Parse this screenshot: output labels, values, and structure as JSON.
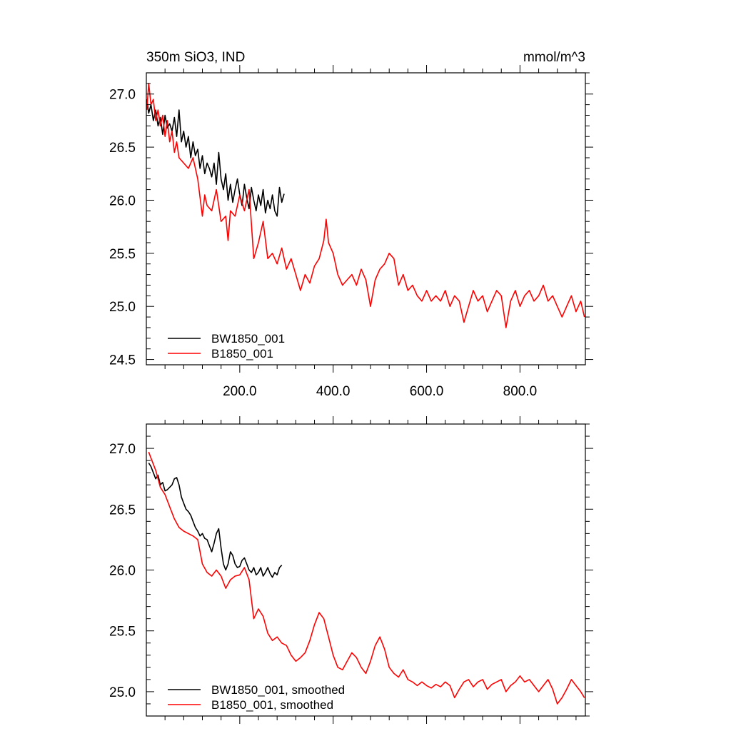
{
  "title_left": "350m SiO3, IND",
  "title_right": "mmol/m^3",
  "chart_data": [
    {
      "type": "line",
      "panel": "raw",
      "xlim": [
        0,
        940
      ],
      "ylim": [
        24.45,
        27.2
      ],
      "x_ticks": [
        200,
        400,
        600,
        800
      ],
      "x_tick_labels": [
        "200.0",
        "400.0",
        "600.0",
        "800.0"
      ],
      "y_ticks": [
        24.5,
        25.0,
        25.5,
        26.0,
        26.5,
        27.0
      ],
      "y_tick_labels": [
        "24.5",
        "25.0",
        "25.5",
        "26.0",
        "26.5",
        "27.0"
      ],
      "legend_position": "bottom-left",
      "series": [
        {
          "name": "BW1850_001",
          "color": "#000000",
          "x": [
            1,
            5,
            10,
            15,
            20,
            25,
            30,
            35,
            40,
            45,
            50,
            55,
            60,
            65,
            70,
            75,
            80,
            85,
            90,
            95,
            100,
            105,
            110,
            115,
            120,
            125,
            130,
            135,
            140,
            145,
            150,
            155,
            160,
            165,
            170,
            175,
            180,
            185,
            190,
            195,
            200,
            205,
            210,
            215,
            220,
            225,
            230,
            235,
            240,
            245,
            250,
            255,
            260,
            265,
            270,
            275,
            280,
            285,
            290,
            295
          ],
          "y": [
            26.95,
            26.82,
            26.9,
            26.75,
            26.85,
            26.7,
            26.78,
            26.62,
            26.8,
            26.68,
            26.72,
            26.65,
            26.78,
            26.6,
            26.85,
            26.55,
            26.65,
            26.5,
            26.6,
            26.4,
            26.55,
            26.42,
            26.48,
            26.3,
            26.42,
            26.25,
            26.35,
            26.3,
            26.22,
            26.35,
            26.15,
            26.45,
            26.2,
            26.1,
            26.25,
            26.0,
            26.15,
            25.98,
            26.1,
            26.2,
            26.05,
            25.95,
            26.15,
            26.02,
            25.92,
            26.12,
            26.0,
            25.9,
            26.05,
            25.95,
            26.1,
            25.88,
            26.0,
            25.92,
            26.05,
            25.9,
            25.85,
            26.12,
            25.98,
            26.06
          ]
        },
        {
          "name": "B1850_001",
          "color": "#ff0000",
          "x": [
            1,
            5,
            10,
            15,
            20,
            25,
            30,
            35,
            40,
            45,
            50,
            55,
            60,
            65,
            70,
            80,
            90,
            100,
            110,
            120,
            125,
            130,
            140,
            150,
            160,
            170,
            175,
            180,
            190,
            200,
            210,
            220,
            230,
            240,
            250,
            260,
            270,
            280,
            290,
            300,
            310,
            320,
            330,
            340,
            350,
            360,
            370,
            380,
            385,
            390,
            400,
            410,
            420,
            430,
            440,
            450,
            460,
            470,
            480,
            490,
            500,
            510,
            520,
            530,
            540,
            550,
            560,
            570,
            580,
            590,
            600,
            610,
            620,
            630,
            640,
            650,
            660,
            670,
            680,
            690,
            700,
            710,
            720,
            730,
            740,
            750,
            760,
            770,
            780,
            790,
            800,
            810,
            820,
            830,
            840,
            850,
            860,
            870,
            880,
            890,
            900,
            910,
            920,
            930,
            938
          ],
          "y": [
            26.85,
            27.1,
            26.9,
            26.95,
            26.75,
            26.85,
            26.7,
            26.8,
            26.6,
            26.75,
            26.55,
            26.65,
            26.45,
            26.55,
            26.4,
            26.35,
            26.3,
            26.4,
            26.2,
            25.85,
            26.05,
            25.95,
            25.9,
            26.1,
            25.8,
            25.85,
            25.62,
            25.9,
            25.85,
            26.05,
            25.9,
            26.1,
            25.45,
            25.6,
            25.8,
            25.45,
            25.5,
            25.4,
            25.55,
            25.35,
            25.45,
            25.3,
            25.15,
            25.3,
            25.22,
            25.38,
            25.45,
            25.62,
            25.82,
            25.6,
            25.5,
            25.3,
            25.2,
            25.25,
            25.3,
            25.2,
            25.35,
            25.25,
            25.0,
            25.25,
            25.35,
            25.4,
            25.5,
            25.45,
            25.2,
            25.3,
            25.15,
            25.2,
            25.1,
            25.05,
            25.15,
            25.05,
            25.1,
            25.05,
            25.15,
            25.0,
            25.1,
            25.05,
            24.85,
            25.0,
            25.15,
            25.05,
            25.1,
            24.95,
            25.05,
            25.15,
            25.1,
            24.8,
            25.05,
            25.15,
            25.0,
            25.1,
            25.15,
            25.05,
            25.1,
            25.2,
            25.05,
            25.1,
            25.0,
            24.9,
            25.0,
            25.1,
            24.95,
            25.05,
            24.9
          ]
        }
      ]
    },
    {
      "type": "line",
      "panel": "smoothed",
      "xlim": [
        0,
        940
      ],
      "ylim": [
        24.8,
        27.2
      ],
      "x_ticks": [
        200,
        400,
        600,
        800
      ],
      "y_ticks": [
        25.0,
        25.5,
        26.0,
        26.5,
        27.0
      ],
      "y_tick_labels": [
        "25.0",
        "25.5",
        "26.0",
        "26.5",
        "27.0"
      ],
      "legend_position": "bottom-left",
      "series": [
        {
          "name": "BW1850_001, smoothed",
          "color": "#000000",
          "x": [
            5,
            10,
            15,
            20,
            25,
            30,
            35,
            40,
            45,
            50,
            55,
            60,
            65,
            70,
            75,
            80,
            85,
            90,
            95,
            100,
            105,
            110,
            115,
            120,
            125,
            130,
            135,
            140,
            145,
            150,
            155,
            160,
            165,
            170,
            175,
            180,
            185,
            190,
            195,
            200,
            205,
            210,
            215,
            220,
            225,
            230,
            235,
            240,
            245,
            250,
            255,
            260,
            265,
            270,
            275,
            280,
            285,
            290
          ],
          "y": [
            26.88,
            26.85,
            26.8,
            26.75,
            26.78,
            26.7,
            26.72,
            26.65,
            26.66,
            26.68,
            26.7,
            26.75,
            26.76,
            26.7,
            26.6,
            26.55,
            26.5,
            26.48,
            26.45,
            26.4,
            26.35,
            26.32,
            26.28,
            26.3,
            26.26,
            26.25,
            26.2,
            26.15,
            26.22,
            26.3,
            26.34,
            26.18,
            26.05,
            26.0,
            26.05,
            26.15,
            26.12,
            26.05,
            26.02,
            26.03,
            26.08,
            26.1,
            26.05,
            26.0,
            25.98,
            26.02,
            25.96,
            25.98,
            26.02,
            25.95,
            25.98,
            26.02,
            25.97,
            25.94,
            25.98,
            25.96,
            26.02,
            26.04
          ]
        },
        {
          "name": "B1850_001, smoothed",
          "color": "#ff0000",
          "x": [
            5,
            10,
            20,
            30,
            40,
            50,
            60,
            70,
            80,
            90,
            100,
            110,
            120,
            130,
            140,
            150,
            160,
            170,
            180,
            190,
            200,
            210,
            220,
            230,
            240,
            250,
            260,
            270,
            280,
            290,
            300,
            310,
            320,
            330,
            340,
            350,
            360,
            370,
            380,
            390,
            400,
            410,
            420,
            430,
            440,
            450,
            460,
            470,
            480,
            490,
            500,
            510,
            520,
            530,
            540,
            550,
            560,
            570,
            580,
            590,
            600,
            610,
            620,
            630,
            640,
            650,
            660,
            670,
            680,
            690,
            700,
            710,
            720,
            730,
            740,
            750,
            760,
            770,
            780,
            790,
            800,
            810,
            820,
            830,
            840,
            850,
            860,
            870,
            880,
            890,
            900,
            910,
            920,
            930,
            938
          ],
          "y": [
            26.97,
            26.92,
            26.82,
            26.68,
            26.62,
            26.52,
            26.42,
            26.35,
            26.32,
            26.3,
            26.28,
            26.25,
            26.05,
            25.98,
            25.95,
            26.0,
            25.95,
            25.85,
            25.92,
            25.95,
            25.96,
            26.02,
            25.92,
            25.6,
            25.68,
            25.62,
            25.48,
            25.42,
            25.45,
            25.4,
            25.38,
            25.3,
            25.25,
            25.28,
            25.32,
            25.42,
            25.55,
            25.65,
            25.6,
            25.45,
            25.3,
            25.2,
            25.18,
            25.25,
            25.32,
            25.28,
            25.2,
            25.15,
            25.25,
            25.38,
            25.45,
            25.35,
            25.2,
            25.15,
            25.12,
            25.18,
            25.1,
            25.08,
            25.05,
            25.08,
            25.05,
            25.03,
            25.06,
            25.04,
            25.08,
            25.05,
            24.95,
            25.02,
            25.08,
            25.1,
            25.04,
            25.08,
            25.1,
            25.02,
            25.06,
            25.08,
            25.1,
            25.0,
            25.05,
            25.08,
            25.13,
            25.08,
            25.1,
            25.05,
            25.0,
            25.05,
            25.1,
            25.02,
            24.9,
            24.95,
            25.02,
            25.1,
            25.05,
            25.0,
            24.95
          ]
        }
      ]
    }
  ]
}
